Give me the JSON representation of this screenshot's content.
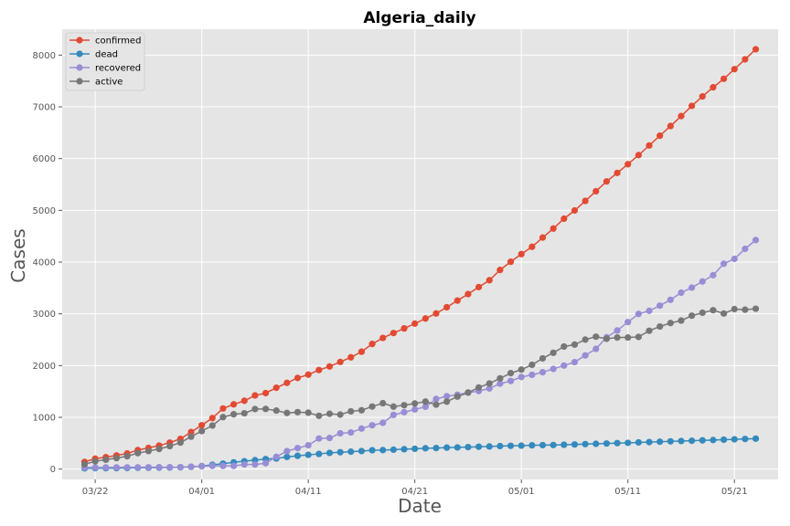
{
  "chart_data": {
    "type": "line",
    "title": "Algeria_daily",
    "xlabel": "Date",
    "ylabel": "Cases",
    "ylim": [
      -200,
      8500
    ],
    "yticks": [
      0,
      1000,
      2000,
      3000,
      4000,
      5000,
      6000,
      7000,
      8000
    ],
    "xticks": [
      "03/22",
      "04/01",
      "04/11",
      "04/21",
      "05/01",
      "05/11",
      "05/21"
    ],
    "x_start": "03/21",
    "grid": true,
    "legend_position": "top-left",
    "series": [
      {
        "name": "confirmed",
        "color": "#E24A33",
        "values": [
          139,
          201,
          230,
          264,
          302,
          367,
          409,
          454,
          511,
          584,
          716,
          847,
          986,
          1171,
          1251,
          1320,
          1423,
          1468,
          1572,
          1666,
          1761,
          1825,
          1914,
          1983,
          2070,
          2160,
          2268,
          2418,
          2534,
          2629,
          2718,
          2811,
          2910,
          3007,
          3127,
          3256,
          3382,
          3517,
          3649,
          3848,
          4006,
          4154,
          4295,
          4474,
          4648,
          4838,
          4997,
          5182,
          5369,
          5558,
          5723,
          5891,
          6067,
          6253,
          6442,
          6629,
          6821,
          7019,
          7201,
          7377,
          7542,
          7728,
          7918,
          8113
        ]
      },
      {
        "name": "dead",
        "color": "#348ABD",
        "values": [
          15,
          17,
          17,
          19,
          21,
          25,
          26,
          29,
          31,
          35,
          44,
          58,
          83,
          105,
          130,
          152,
          173,
          193,
          205,
          235,
          256,
          275,
          293,
          313,
          326,
          336,
          348,
          364,
          367,
          375,
          384,
          392,
          402,
          407,
          415,
          419,
          425,
          432,
          437,
          444,
          450,
          453,
          459,
          463,
          465,
          470,
          476,
          483,
          488,
          494,
          502,
          507,
          515,
          522,
          529,
          536,
          542,
          548,
          555,
          561,
          568,
          575,
          582,
          588
        ]
      },
      {
        "name": "recovered",
        "color": "#988ED5",
        "values": [
          32,
          32,
          32,
          33,
          33,
          34,
          35,
          36,
          37,
          37,
          46,
          54,
          62,
          62,
          62,
          90,
          90,
          113,
          237,
          347,
          405,
          460,
          591,
          601,
          691,
          708,
          783,
          846,
          894,
          1047,
          1099,
          1152,
          1204,
          1355,
          1408,
          1437,
          1479,
          1508,
          1558,
          1651,
          1702,
          1779,
          1821,
          1872,
          1936,
          2000,
          2067,
          2197,
          2323,
          2546,
          2678,
          2841,
          2998,
          3058,
          3158,
          3271,
          3409,
          3507,
          3625,
          3746,
          3968,
          4062,
          4256,
          4426
        ]
      },
      {
        "name": "active",
        "color": "#777777",
        "values": [
          92,
          152,
          181,
          212,
          248,
          308,
          348,
          389,
          443,
          512,
          626,
          735,
          841,
          1004,
          1059,
          1078,
          1160,
          1162,
          1130,
          1084,
          1100,
          1090,
          1030,
          1069,
          1053,
          1116,
          1137,
          1208,
          1273,
          1207,
          1235,
          1267,
          1304,
          1245,
          1304,
          1400,
          1478,
          1577,
          1654,
          1753,
          1854,
          1922,
          2015,
          2139,
          2247,
          2368,
          2405,
          2502,
          2558,
          2518,
          2543,
          2543,
          2554,
          2673,
          2755,
          2822,
          2870,
          2964,
          3021,
          3070,
          3006,
          3091,
          3080,
          3099
        ]
      }
    ]
  }
}
